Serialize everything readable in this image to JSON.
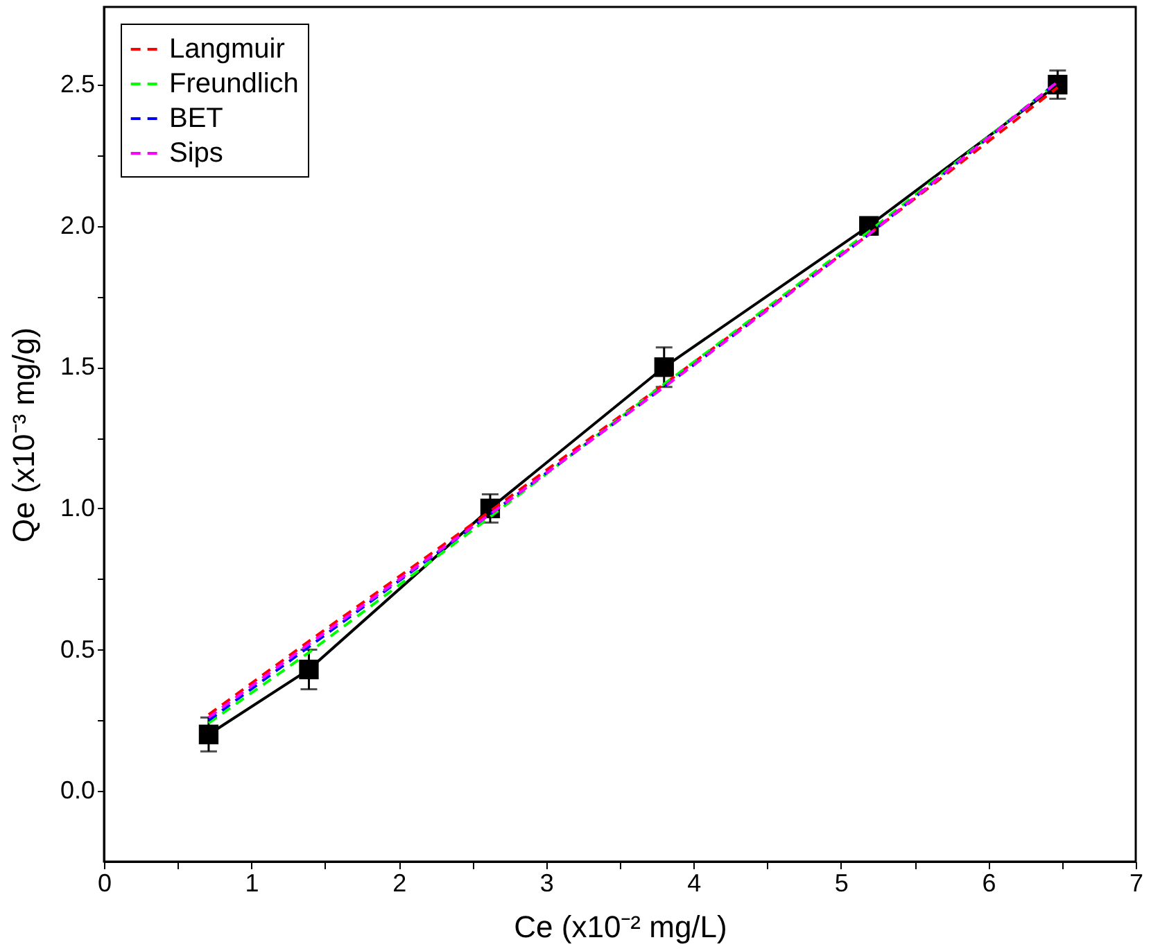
{
  "chart_data": {
    "type": "line",
    "xlabel": "Ce (x10⁻² mg/L)",
    "ylabel": "Qe (x10⁻³ mg/g)",
    "xlim": [
      0,
      7
    ],
    "ylim": [
      -0.25,
      2.775
    ],
    "xticks": [
      0,
      {
        "value": 0.5,
        "label": null
      },
      1,
      {
        "value": 1.5,
        "label": null
      },
      2,
      {
        "value": 2.5,
        "label": null
      },
      3,
      {
        "value": 3.5,
        "label": null
      },
      4,
      {
        "value": 4.5,
        "label": null
      },
      5,
      {
        "value": 5.5,
        "label": null
      },
      6,
      {
        "value": 6.5,
        "label": null
      },
      7
    ],
    "yticks": [
      {
        "value": 0,
        "label": "0.0"
      },
      {
        "value": 0.25,
        "label": null
      },
      {
        "value": 0.5,
        "label": "0.5"
      },
      {
        "value": 0.75,
        "label": null
      },
      {
        "value": 1,
        "label": "1.0"
      },
      {
        "value": 1.25,
        "label": null
      },
      {
        "value": 1.5,
        "label": "1.5"
      },
      {
        "value": 1.75,
        "label": null
      },
      {
        "value": 2,
        "label": "2.0"
      },
      {
        "value": 2.25,
        "label": null
      },
      {
        "value": 2.5,
        "label": "2.5"
      }
    ],
    "grid": false,
    "legend": "top left",
    "series": [
      {
        "color": "#000000",
        "marker": "square",
        "line_style": "solid",
        "x": [
          0.71,
          1.39,
          2.62,
          3.8,
          5.19,
          6.47
        ],
        "values": [
          0.2,
          0.43,
          1.0,
          1.5,
          2.0,
          2.5
        ],
        "errors": [
          0.06,
          0.07,
          0.05,
          0.07,
          0.03,
          0.05
        ]
      },
      {
        "name": "Langmuir",
        "color": "#ff0000",
        "marker": "none",
        "line_style": "dashed",
        "x": [
          0.71,
          1.39,
          2.62,
          3.8,
          5.19,
          6.47
        ],
        "values": [
          0.27,
          0.53,
          0.99,
          1.44,
          1.97,
          2.49
        ]
      },
      {
        "name": "Freundlich",
        "color": "#00ff00",
        "marker": "none",
        "line_style": "dashed",
        "x": [
          0.71,
          1.39,
          2.62,
          3.8,
          5.19,
          6.47
        ],
        "values": [
          0.24,
          0.49,
          0.97,
          1.44,
          1.98,
          2.51
        ]
      },
      {
        "name": "BET",
        "color": "#0000ff",
        "marker": "none",
        "line_style": "dashed",
        "x": [
          0.71,
          1.39,
          2.62,
          3.8,
          5.19,
          6.47
        ],
        "values": [
          0.25,
          0.51,
          0.98,
          1.43,
          1.97,
          2.51
        ]
      },
      {
        "name": "Sips",
        "color": "#ff00ff",
        "marker": "none",
        "line_style": "dashed",
        "x": [
          0.71,
          1.39,
          2.62,
          3.8,
          5.19,
          6.47
        ],
        "values": [
          0.26,
          0.52,
          0.98,
          1.43,
          1.97,
          2.51
        ]
      }
    ]
  }
}
